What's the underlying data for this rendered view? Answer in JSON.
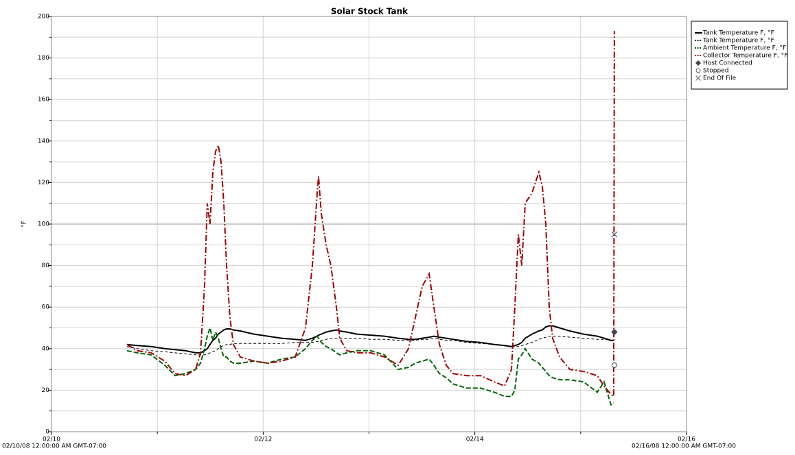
{
  "chart_data": {
    "type": "line",
    "title": "Solar Stock Tank",
    "y_label": "°F",
    "start_label": "02/10/08 12:00:00 AM GMT-07:00",
    "end_label": "02/16/08 12:00:00 AM GMT-07:00",
    "xlim": [
      0,
      6
    ],
    "xticks": [
      {
        "value": 0,
        "label": "02/10"
      },
      {
        "value": 2,
        "label": "02/12"
      },
      {
        "value": 4,
        "label": "02/14"
      },
      {
        "value": 6,
        "label": "02/16"
      }
    ],
    "xminor": [
      1,
      3,
      5
    ],
    "ylim": [
      0,
      200
    ],
    "yticks": [
      0,
      20,
      40,
      60,
      80,
      100,
      120,
      140,
      160,
      180,
      200
    ],
    "yminor": [
      10,
      30,
      50,
      70,
      90,
      110,
      130,
      150,
      170,
      190
    ],
    "grid": true,
    "legend": "top-right",
    "x": [
      0.713,
      0.811,
      0.941,
      1.07,
      1.168,
      1.265,
      1.362,
      1.408,
      1.446,
      1.472,
      1.498,
      1.524,
      1.55,
      1.576,
      1.602,
      1.628,
      1.654,
      1.686,
      1.719,
      1.784,
      1.913,
      2.043,
      2.173,
      2.303,
      2.4,
      2.465,
      2.51,
      2.523,
      2.549,
      2.595,
      2.64,
      2.692,
      2.724,
      2.789,
      2.886,
      3.016,
      3.146,
      3.276,
      3.373,
      3.438,
      3.503,
      3.568,
      3.613,
      3.665,
      3.73,
      3.794,
      3.924,
      4.054,
      4.184,
      4.281,
      4.346,
      4.378,
      4.411,
      4.443,
      4.476,
      4.54,
      4.605,
      4.638,
      4.67,
      4.703,
      4.735,
      4.8,
      4.897,
      5.027,
      5.157,
      5.221,
      5.286,
      5.312,
      5.318
    ],
    "series": [
      {
        "name": "Tank Temperature F, °F",
        "color": "#000000",
        "dash": "solid",
        "width": 2,
        "values": [
          42,
          41.5,
          41,
          40,
          39.5,
          39,
          38,
          38,
          39,
          40,
          42,
          44,
          45,
          47,
          48,
          49,
          49.5,
          49.5,
          49,
          48.5,
          47,
          46,
          45,
          44.5,
          44,
          45,
          46,
          46.5,
          47,
          48,
          48.5,
          49,
          48.5,
          48,
          47,
          46.5,
          46,
          45,
          44.5,
          44.5,
          45,
          45.5,
          46,
          45.5,
          45,
          44.5,
          43.5,
          43,
          42,
          41.5,
          41,
          41.5,
          42,
          43,
          45,
          47,
          48.5,
          49,
          50.5,
          51,
          51,
          50,
          48.5,
          47,
          46,
          45,
          44,
          44,
          null
        ]
      },
      {
        "name": "Tank Temperature F, °F",
        "color": "#000000",
        "dash": "dot",
        "width": 1,
        "values": [
          41,
          40,
          39,
          38.5,
          38,
          37.5,
          37,
          37,
          37,
          37.5,
          38,
          38.5,
          39,
          40,
          41,
          41.5,
          42,
          42,
          42.5,
          42.5,
          42.5,
          42.5,
          42.5,
          43,
          43,
          43,
          43.5,
          43.5,
          44,
          44.5,
          45,
          45,
          45,
          45,
          45,
          44.5,
          44.5,
          44,
          44,
          44,
          44.5,
          44.5,
          45,
          44.5,
          44,
          44,
          43,
          42.5,
          42,
          41.5,
          41,
          41,
          41,
          41.5,
          42,
          43,
          44.5,
          45,
          45.5,
          46,
          46,
          46,
          45.5,
          45,
          44.5,
          44.5,
          44,
          44,
          null
        ]
      },
      {
        "name": "Ambient Temperature F, °F",
        "color": "#006400",
        "dash": "dash",
        "width": 2,
        "values": [
          39,
          38,
          37,
          32,
          27,
          28,
          30,
          33,
          40,
          46,
          50,
          44,
          48,
          45,
          40,
          36,
          36,
          34,
          33,
          33,
          34,
          33,
          35,
          36,
          40,
          44,
          46,
          45,
          43,
          41,
          40,
          38,
          37,
          38,
          39,
          39,
          37,
          30,
          31,
          33,
          34,
          35,
          32,
          28,
          26,
          23,
          21,
          21,
          19,
          17,
          17,
          20,
          35,
          37,
          40,
          35,
          33,
          31,
          29,
          27,
          26,
          25,
          25,
          24,
          19,
          24,
          13,
          14,
          null
        ]
      },
      {
        "name": "Collector Temperature F, °F",
        "color": "#a00000",
        "dash": "dashdot",
        "width": 2,
        "values": [
          42,
          39,
          38,
          34,
          28,
          27,
          30,
          38,
          70,
          110,
          100,
          125,
          135,
          138,
          130,
          110,
          80,
          55,
          42,
          36,
          34,
          33,
          34,
          36,
          50,
          80,
          115,
          123,
          105,
          90,
          80,
          60,
          45,
          39,
          38,
          38,
          36,
          32,
          40,
          55,
          70,
          76,
          60,
          42,
          32,
          28,
          27,
          27,
          24,
          22,
          30,
          60,
          95,
          80,
          110,
          115,
          125,
          118,
          100,
          60,
          45,
          36,
          30,
          29,
          27,
          22,
          18,
          17,
          193
        ]
      }
    ],
    "markers": [
      {
        "name": "Host Connected",
        "symbol": "diamond",
        "color": "#444444",
        "x": 5.318,
        "y": 48
      },
      {
        "name": "Stopped",
        "symbol": "circle",
        "color": "#444444",
        "x": 5.318,
        "y": 32
      },
      {
        "name": "End Of File",
        "symbol": "cross",
        "color": "#444444",
        "x": 5.318,
        "y": 95
      }
    ]
  }
}
